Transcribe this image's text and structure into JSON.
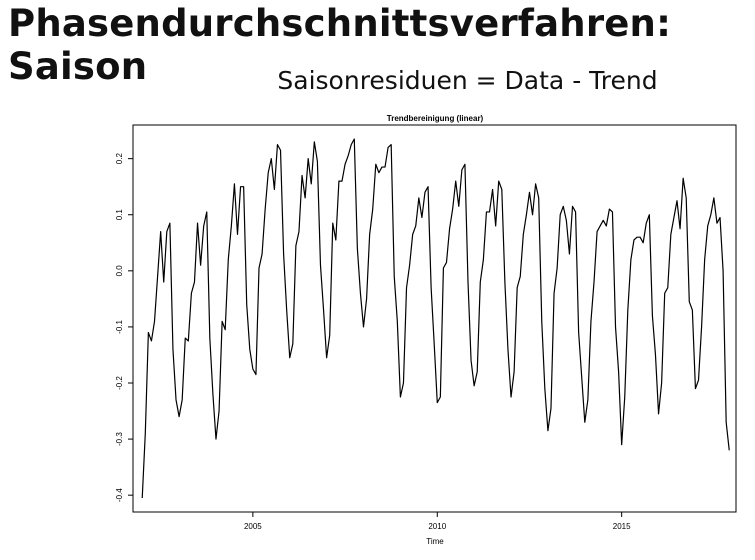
{
  "slide": {
    "title": "Phasendurchschnittsverfahren: Saison",
    "subtitle": "Saisonresiduen = Data - Trend"
  },
  "chart_data": {
    "type": "line",
    "title": "Trendbereinigung (linear)",
    "xlabel": "Time",
    "ylabel": "",
    "xlim": [
      2001.75,
      2018.1
    ],
    "ylim": [
      -0.43,
      0.26
    ],
    "xticks": [
      2005,
      2010,
      2015
    ],
    "yticks": [
      -0.4,
      -0.3,
      -0.2,
      -0.1,
      0.0,
      0.1,
      0.2
    ],
    "ytick_labels": [
      "-0.4",
      "-0.3",
      "-0.2",
      "-0.1",
      "0.0",
      "0.1",
      "0.2"
    ],
    "grid": false,
    "line_color": "#000000",
    "start": 2002.0,
    "frequency": 12,
    "values": [
      -0.405,
      -0.29,
      -0.11,
      -0.125,
      -0.09,
      -0.01,
      0.07,
      -0.02,
      0.07,
      0.085,
      -0.14,
      -0.23,
      -0.26,
      -0.23,
      -0.12,
      -0.125,
      -0.04,
      -0.02,
      0.085,
      0.01,
      0.08,
      0.105,
      -0.12,
      -0.22,
      -0.3,
      -0.25,
      -0.09,
      -0.105,
      0.02,
      0.08,
      0.155,
      0.065,
      0.15,
      0.15,
      -0.06,
      -0.14,
      -0.175,
      -0.185,
      0.005,
      0.03,
      0.11,
      0.175,
      0.2,
      0.145,
      0.225,
      0.215,
      0.03,
      -0.07,
      -0.155,
      -0.13,
      0.045,
      0.07,
      0.17,
      0.13,
      0.2,
      0.155,
      0.23,
      0.195,
      0.01,
      -0.07,
      -0.155,
      -0.115,
      0.085,
      0.055,
      0.16,
      0.16,
      0.19,
      0.205,
      0.225,
      0.235,
      0.04,
      -0.04,
      -0.1,
      -0.05,
      0.065,
      0.11,
      0.19,
      0.175,
      0.185,
      0.185,
      0.22,
      0.225,
      -0.01,
      -0.09,
      -0.225,
      -0.2,
      -0.03,
      0.01,
      0.065,
      0.08,
      0.13,
      0.095,
      0.14,
      0.15,
      -0.03,
      -0.13,
      -0.235,
      -0.225,
      0.005,
      0.015,
      0.075,
      0.11,
      0.16,
      0.115,
      0.18,
      0.19,
      -0.02,
      -0.16,
      -0.205,
      -0.18,
      -0.02,
      0.02,
      0.105,
      0.105,
      0.145,
      0.08,
      0.16,
      0.145,
      -0.02,
      -0.14,
      -0.225,
      -0.18,
      -0.03,
      -0.01,
      0.065,
      0.1,
      0.14,
      0.1,
      0.155,
      0.13,
      -0.09,
      -0.21,
      -0.285,
      -0.245,
      -0.04,
      0.005,
      0.1,
      0.115,
      0.09,
      0.03,
      0.115,
      0.105,
      -0.11,
      -0.19,
      -0.27,
      -0.23,
      -0.09,
      -0.02,
      0.07,
      0.08,
      0.09,
      0.08,
      0.11,
      0.105,
      -0.1,
      -0.18,
      -0.31,
      -0.225,
      -0.07,
      0.02,
      0.055,
      0.06,
      0.06,
      0.05,
      0.085,
      0.1,
      -0.08,
      -0.15,
      -0.255,
      -0.2,
      -0.04,
      -0.03,
      0.065,
      0.095,
      0.125,
      0.075,
      0.165,
      0.13,
      -0.055,
      -0.07,
      -0.21,
      -0.195,
      -0.1,
      0.02,
      0.08,
      0.1,
      0.13,
      0.085,
      0.095,
      0.0,
      -0.27,
      -0.32
    ]
  }
}
